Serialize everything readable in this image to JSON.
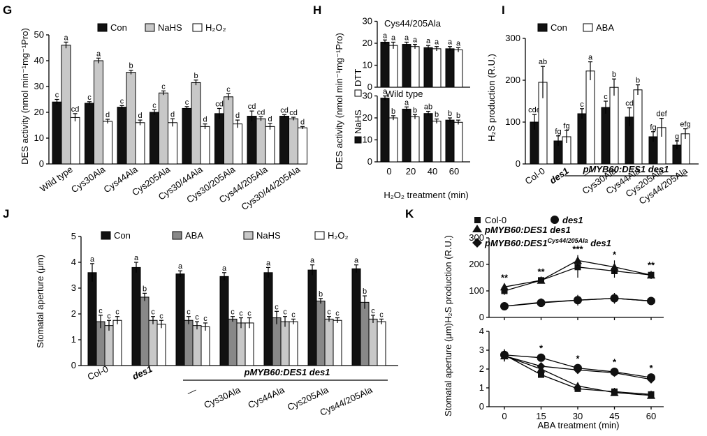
{
  "chart_data": [
    {
      "panel": "G",
      "type": "bar",
      "ylabel": "DES activity (nmol min⁻¹mg⁻¹Pro)",
      "ylim": [
        0,
        50
      ],
      "yticks": [
        0,
        10,
        20,
        30,
        40,
        50
      ],
      "categories": [
        "Wild type",
        "Cys30Ala",
        "Cys44Ala",
        "Cys205Ala",
        "Cys30/44Ala",
        "Cys30/205Ala",
        "Cys44/205Ala",
        "Cys30/44/205Ala"
      ],
      "series": [
        {
          "name": "Con",
          "color": "#111111",
          "values": [
            24,
            23.5,
            22,
            20,
            21.5,
            19.5,
            18.5,
            18.5
          ],
          "errors": [
            1,
            0.6,
            0.6,
            1,
            0.7,
            2,
            2,
            0.6
          ],
          "letters": [
            "c",
            "c",
            "c",
            "c",
            "c",
            "cd",
            "cd",
            "cd"
          ]
        },
        {
          "name": "NaHS",
          "color": "#c8c8c8",
          "values": [
            46,
            40,
            35.5,
            27.5,
            31.5,
            26,
            17.5,
            17.5
          ],
          "errors": [
            1.2,
            1,
            0.8,
            0.8,
            1,
            1.2,
            0.8,
            0.6
          ],
          "letters": [
            "a",
            "a",
            "b",
            "c",
            "b",
            "c",
            "cd",
            "cd"
          ]
        },
        {
          "name": "H2O2",
          "color": "#ffffff",
          "values": [
            18,
            16.5,
            16,
            16,
            14.5,
            15.5,
            14.5,
            14
          ],
          "errors": [
            1.5,
            0.8,
            1,
            1.5,
            1,
            1.5,
            1.2,
            0.5
          ],
          "letters": [
            "cd",
            "d",
            "d",
            "d",
            "d",
            "d",
            "d",
            "d"
          ]
        }
      ],
      "legend": [
        "Con",
        "NaHS",
        "H₂O₂"
      ]
    },
    {
      "panel": "H",
      "type": "bar",
      "ylabel": "DES activity (nmol min⁻¹mg⁻¹Pro)",
      "xlabel": "H₂O₂ treatment (min)",
      "categories": [
        "0",
        "20",
        "40",
        "60"
      ],
      "subplots": [
        {
          "title": "Cys44/205Ala",
          "ylim": [
            0,
            30
          ],
          "yticks": [
            0,
            10,
            20,
            30
          ],
          "series": [
            {
              "name": "NaHS",
              "color": "#111111",
              "values": [
                20.5,
                19.5,
                18,
                17.5
              ],
              "errors": [
                1,
                1,
                1,
                1
              ],
              "letters": [
                "a",
                "a",
                "a",
                "a"
              ]
            },
            {
              "name": "DTT",
              "color": "#ffffff",
              "values": [
                19,
                18.5,
                17.5,
                17
              ],
              "errors": [
                1.5,
                1,
                1,
                1
              ],
              "letters": [
                "a",
                "a",
                "a",
                "a"
              ]
            }
          ]
        },
        {
          "title": "Wild type",
          "ylim": [
            0,
            30
          ],
          "yticks": [
            0,
            10,
            20,
            30
          ],
          "series": [
            {
              "name": "NaHS",
              "color": "#111111",
              "values": [
                29,
                24,
                22,
                19
              ],
              "errors": [
                1,
                1,
                1,
                1
              ],
              "letters": [
                "a",
                "a",
                "ab",
                "b"
              ]
            },
            {
              "name": "DTT",
              "color": "#ffffff",
              "values": [
                20,
                20.5,
                18.5,
                18
              ],
              "errors": [
                1,
                1,
                1,
                1
              ],
              "letters": [
                "b",
                "b",
                "b",
                "b"
              ]
            }
          ]
        }
      ],
      "legend": [
        "DTT",
        "NaHS"
      ]
    },
    {
      "panel": "I",
      "type": "bar",
      "ylabel": "H₂S production (R.U.)",
      "ylim": [
        0,
        300
      ],
      "yticks": [
        0,
        100,
        200,
        300
      ],
      "categories": [
        "Col-0",
        "des1",
        "—",
        "Cys30Ala",
        "Cys44Ala",
        "Cys205Ala",
        "Cys44/205Ala"
      ],
      "group_label": "pMYB60:DES1 des1",
      "series": [
        {
          "name": "Con",
          "color": "#111111",
          "values": [
            100,
            55,
            120,
            135,
            112,
            65,
            45
          ],
          "errors": [
            18,
            12,
            12,
            15,
            22,
            12,
            10
          ],
          "letters": [
            "cde",
            "fg",
            "c",
            "c",
            "cd",
            "fg",
            "g"
          ]
        },
        {
          "name": "ABA",
          "color": "#ffffff",
          "values": [
            195,
            65,
            222,
            183,
            177,
            87,
            72
          ],
          "errors": [
            38,
            15,
            22,
            20,
            12,
            22,
            12
          ],
          "letters": [
            "ab",
            "fg",
            "a",
            "b",
            "b",
            "def",
            "efg"
          ]
        }
      ],
      "legend": [
        "Con",
        "ABA"
      ]
    },
    {
      "panel": "J",
      "type": "bar",
      "ylabel": "Stomatal aperture (μm)",
      "ylim": [
        0,
        5
      ],
      "yticks": [
        0,
        1,
        2,
        3,
        4,
        5
      ],
      "categories": [
        "Col-0",
        "des1",
        "—",
        "Cys30Ala",
        "Cys44Ala",
        "Cys205Ala",
        "Cys44/205Ala"
      ],
      "group_label": "pMYB60:DES1 des1",
      "series": [
        {
          "name": "Con",
          "color": "#111111",
          "values": [
            3.6,
            3.8,
            3.55,
            3.45,
            3.6,
            3.7,
            3.75
          ],
          "errors": [
            0.35,
            0.2,
            0.12,
            0.15,
            0.2,
            0.2,
            0.15
          ],
          "letters": [
            "a",
            "a",
            "a",
            "a",
            "a",
            "a",
            "a"
          ]
        },
        {
          "name": "ABA",
          "color": "#888888",
          "values": [
            1.7,
            2.65,
            1.75,
            1.8,
            1.85,
            2.5,
            2.45
          ],
          "errors": [
            0.25,
            0.15,
            0.15,
            0.1,
            0.25,
            0.1,
            0.25
          ],
          "letters": [
            "c",
            "b",
            "c",
            "c",
            "c",
            "b",
            "b"
          ]
        },
        {
          "name": "NaHS",
          "color": "#c8c8c8",
          "values": [
            1.55,
            1.75,
            1.55,
            1.65,
            1.7,
            1.8,
            1.8
          ],
          "errors": [
            0.2,
            0.15,
            0.15,
            0.2,
            0.2,
            0.1,
            0.15
          ],
          "letters": [
            "c",
            "c",
            "c",
            "c",
            "c",
            "c",
            "c"
          ]
        },
        {
          "name": "H2O2",
          "color": "#ffffff",
          "values": [
            1.75,
            1.6,
            1.5,
            1.65,
            1.7,
            1.75,
            1.7
          ],
          "errors": [
            0.15,
            0.15,
            0.15,
            0.2,
            0.1,
            0.1,
            0.1
          ],
          "letters": [
            "c",
            "c",
            "c",
            "c",
            "c",
            "c",
            "c"
          ]
        }
      ],
      "legend": [
        "Con",
        "ABA",
        "NaHS",
        "H₂O₂"
      ]
    },
    {
      "panel": "K",
      "type": "line",
      "x": [
        0,
        15,
        30,
        45,
        60
      ],
      "xlabel": "ABA treatment (min)",
      "subplots": [
        {
          "ylabel": "H₂S production (R.U.)",
          "ylim": [
            0,
            300
          ],
          "yticks": [
            0,
            100,
            200,
            300
          ],
          "significance": [
            "**",
            "**",
            "***",
            "*",
            "**"
          ],
          "series": [
            {
              "name": "Col-0",
              "marker": "square",
              "values": [
                100,
                140,
                190,
                175,
                160
              ],
              "errors": [
                15,
                10,
                40,
                25,
                15
              ]
            },
            {
              "name": "des1",
              "marker": "circle",
              "values": [
                42,
                55,
                65,
                72,
                62
              ],
              "errors": [
                15,
                12,
                20,
                20,
                12
              ]
            },
            {
              "name": "pMYB60:DES1 des1",
              "marker": "triangle",
              "values": [
                115,
                140,
                215,
                190,
                160
              ],
              "errors": [
                12,
                10,
                20,
                25,
                15
              ]
            },
            {
              "name": "pMYB60:DES1Cys44/205Ala des1",
              "marker": "diamond",
              "values": [
                42,
                57,
                65,
                72,
                62
              ],
              "errors": [
                12,
                12,
                15,
                20,
                12
              ]
            }
          ]
        },
        {
          "ylabel": "Stomatal aperture (μm)",
          "ylim": [
            0,
            4
          ],
          "yticks": [
            0,
            1,
            2,
            3,
            4
          ],
          "significance": [
            "",
            "*",
            "*",
            "*",
            "*"
          ],
          "series": [
            {
              "name": "Col-0",
              "marker": "square",
              "values": [
                2.75,
                1.7,
                0.95,
                0.8,
                0.65
              ],
              "errors": [
                0.3,
                0.15,
                0.15,
                0.2,
                0.2
              ]
            },
            {
              "name": "des1",
              "marker": "circle",
              "values": [
                2.75,
                2.6,
                2.05,
                1.85,
                1.55
              ],
              "errors": [
                0.3,
                0.2,
                0.2,
                0.2,
                0.2
              ]
            },
            {
              "name": "pMYB60:DES1 des1",
              "marker": "triangle",
              "values": [
                2.7,
                2.0,
                1.1,
                0.75,
                0.6
              ],
              "errors": [
                0.3,
                0.2,
                0.15,
                0.15,
                0.15
              ]
            },
            {
              "name": "pMYB60:DES1Cys44/205Ala des1",
              "marker": "diamond",
              "values": [
                2.7,
                2.15,
                1.95,
                1.8,
                1.45
              ],
              "errors": [
                0.3,
                0.2,
                0.2,
                0.2,
                0.2
              ]
            }
          ]
        }
      ],
      "legend": [
        "Col-0",
        "des1",
        "pMYB60:DES1 des1",
        "pMYB60:DES1Cys44/205Ala des1"
      ]
    }
  ],
  "panels": [
    "G",
    "H",
    "I",
    "J",
    "K"
  ],
  "tick_labels": {
    "g": [
      "0",
      "10",
      "20",
      "30",
      "40",
      "50"
    ],
    "h": [
      "0",
      "10",
      "20",
      "30"
    ],
    "h_x": [
      "0",
      "20",
      "40",
      "60"
    ],
    "i": [
      "0",
      "100",
      "200",
      "300"
    ],
    "j": [
      "0",
      "1",
      "2",
      "3",
      "4",
      "5"
    ],
    "k1": [
      "0",
      "100",
      "200",
      "300"
    ],
    "k2": [
      "0",
      "1",
      "2",
      "3",
      "4"
    ],
    "k_x": [
      "0",
      "15",
      "30",
      "45",
      "60"
    ]
  },
  "texts": {
    "g_ylabel": "DES activity (nmol min⁻¹mg⁻¹Pro)",
    "h_ylabel": "DES activity (nmol min⁻¹mg⁻¹Pro)",
    "h_title_top": "Cys44/205Ala",
    "h_title_bottom": "Wild type",
    "h_xlabel": "H₂O₂ treatment (min)",
    "h_leg_dtt": "DTT",
    "h_leg_nahs": "NaHS",
    "i_ylabel": "H₂S production (R.U.)",
    "i_group": "pMYB60:DES1 des1",
    "j_ylabel": "Stomatal aperture (μm)",
    "j_group": "pMYB60:DES1 des1",
    "k_ylabel_top": "H₂S production (R.U.)",
    "k_ylabel_bottom": "Stomatal aperture (μm)",
    "k_xlabel": "ABA treatment (min)",
    "k_leg_col0": "Col-0",
    "k_leg_des1": "des1",
    "k_leg_pmyb_a": "pMYB60:DES1 des1",
    "k_leg_pmyb_b_main": "pMYB60:DES1",
    "k_leg_pmyb_b_sup": "Cys44/205Ala",
    "k_leg_pmyb_b_tail": " des1",
    "g_leg": [
      "Con",
      "NaHS",
      "H₂O₂"
    ],
    "i_leg": [
      "Con",
      "ABA"
    ],
    "j_leg": [
      "Con",
      "ABA",
      "NaHS",
      "H₂O₂"
    ]
  }
}
